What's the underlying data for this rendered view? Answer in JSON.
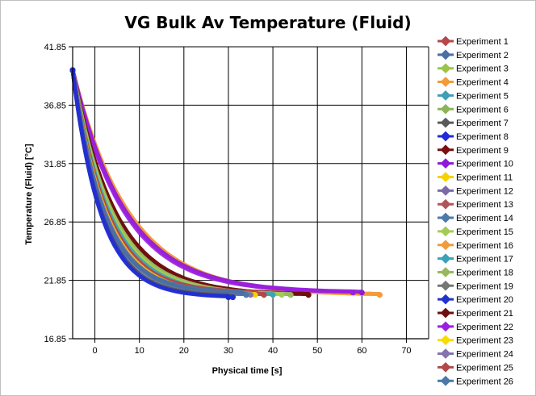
{
  "chart_data": {
    "type": "line",
    "title": "VG Bulk Av Temperature (Fluid)",
    "xlabel": "Physical time [s]",
    "ylabel": "Temperature (Fluid) [°C]",
    "xlim": [
      -5,
      75
    ],
    "ylim": [
      16.85,
      41.85
    ],
    "xticks": [
      "0",
      "10",
      "20",
      "30",
      "40",
      "50",
      "60",
      "70"
    ],
    "yticks": [
      "41.85",
      "36.85",
      "31.85",
      "26.85",
      "21.85",
      "16.85"
    ],
    "grid": true,
    "legend_position": "right",
    "start_point": {
      "x": -5,
      "y": 39.85
    },
    "series": [
      {
        "name": "Experiment 1",
        "color": "#b5474a",
        "end_x": 36,
        "end_y": 20.8
      },
      {
        "name": "Experiment 2",
        "color": "#4a6fa5",
        "end_x": 33,
        "end_y": 20.8
      },
      {
        "name": "Experiment 3",
        "color": "#9cc44d",
        "end_x": 40,
        "end_y": 20.6
      },
      {
        "name": "Experiment 4",
        "color": "#f39a3a",
        "end_x": 64,
        "end_y": 20.6
      },
      {
        "name": "Experiment 5",
        "color": "#3f9fb4",
        "end_x": 38,
        "end_y": 20.6
      },
      {
        "name": "Experiment 6",
        "color": "#8fb35a",
        "end_x": 44,
        "end_y": 20.6
      },
      {
        "name": "Experiment 7",
        "color": "#5a5a5a",
        "end_x": 30,
        "end_y": 20.5
      },
      {
        "name": "Experiment 8",
        "color": "#1f2bd8",
        "end_x": 30,
        "end_y": 20.4
      },
      {
        "name": "Experiment 9",
        "color": "#7a1010",
        "end_x": 48,
        "end_y": 20.6
      },
      {
        "name": "Experiment 10",
        "color": "#8b1bd6",
        "end_x": 60,
        "end_y": 20.8
      },
      {
        "name": "Experiment 11",
        "color": "#f5d200",
        "end_x": 36,
        "end_y": 20.6
      },
      {
        "name": "Experiment 12",
        "color": "#7b6aa6",
        "end_x": 34,
        "end_y": 20.6
      },
      {
        "name": "Experiment 13",
        "color": "#b0565a",
        "end_x": 38,
        "end_y": 20.6
      },
      {
        "name": "Experiment 14",
        "color": "#4d7aa8",
        "end_x": 34,
        "end_y": 20.6
      },
      {
        "name": "Experiment 15",
        "color": "#a3cc57",
        "end_x": 42,
        "end_y": 20.6
      },
      {
        "name": "Experiment 16",
        "color": "#f39a3a",
        "end_x": 64,
        "end_y": 20.6
      },
      {
        "name": "Experiment 17",
        "color": "#3aa3b8",
        "end_x": 40,
        "end_y": 20.6
      },
      {
        "name": "Experiment 18",
        "color": "#99b85e",
        "end_x": 44,
        "end_y": 20.6
      },
      {
        "name": "Experiment 19",
        "color": "#767676",
        "end_x": 31,
        "end_y": 20.5
      },
      {
        "name": "Experiment 20",
        "color": "#2233cc",
        "end_x": 31,
        "end_y": 20.4
      },
      {
        "name": "Experiment 21",
        "color": "#6e0f0f",
        "end_x": 48,
        "end_y": 20.6
      },
      {
        "name": "Experiment 22",
        "color": "#9a1fe0",
        "end_x": 58,
        "end_y": 20.8
      },
      {
        "name": "Experiment 23",
        "color": "#f7dc00",
        "end_x": 35,
        "end_y": 20.6
      },
      {
        "name": "Experiment 24",
        "color": "#8572b0",
        "end_x": 35,
        "end_y": 20.6
      },
      {
        "name": "Experiment 25",
        "color": "#b04a4a",
        "end_x": 38,
        "end_y": 20.6
      },
      {
        "name": "Experiment 26",
        "color": "#4a78a8",
        "end_x": 34,
        "end_y": 20.6
      }
    ]
  }
}
